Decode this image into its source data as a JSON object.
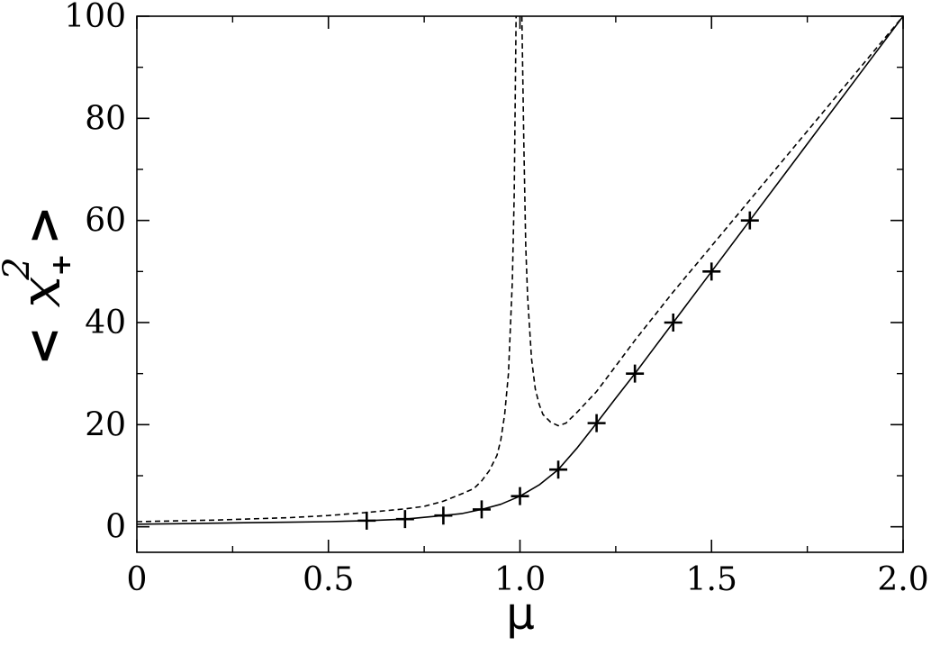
{
  "chart_data": {
    "type": "line",
    "title": "",
    "xlabel": "μ",
    "ylabel": "< x₊² >",
    "ylabel_parts": {
      "open": "<",
      "var": "x",
      "sub": "+",
      "sup": "2",
      "close": ">"
    },
    "xlim": [
      0,
      2.0
    ],
    "ylim": [
      -5,
      100
    ],
    "x_ticks": [
      0,
      0.5,
      1.0,
      1.5,
      2.0
    ],
    "x_tick_labels": [
      "0",
      "0.5",
      "1.0",
      "1.5",
      "2.0"
    ],
    "x_minor_ticks": [
      0.25,
      0.75,
      1.25,
      1.75
    ],
    "y_ticks": [
      0,
      20,
      40,
      60,
      80,
      100
    ],
    "y_tick_labels": [
      "0",
      "20",
      "40",
      "60",
      "80",
      "100"
    ],
    "y_minor_ticks": [
      10,
      30,
      50,
      70,
      90
    ],
    "grid": false,
    "legend": "none",
    "series": [
      {
        "style": "solid",
        "color": "#000000",
        "x": [
          0,
          0.1,
          0.2,
          0.3,
          0.4,
          0.5,
          0.6,
          0.7,
          0.8,
          0.85,
          0.9,
          0.95,
          1.0,
          1.05,
          1.1,
          1.15,
          1.2,
          1.25,
          1.3,
          1.35,
          1.4,
          1.5,
          1.6,
          1.7,
          1.8,
          1.9,
          2.0
        ],
        "y": [
          0.5,
          0.6,
          0.7,
          0.8,
          0.9,
          1.0,
          1.2,
          1.5,
          2.2,
          2.6,
          3.4,
          4.4,
          6.0,
          8.2,
          11.2,
          15.5,
          20.3,
          25.2,
          30.0,
          35.0,
          40.0,
          50.0,
          60.0,
          70.0,
          80.0,
          90.0,
          100.0
        ]
      },
      {
        "style": "dashed",
        "color": "#000000",
        "x": [
          0,
          0.2,
          0.4,
          0.5,
          0.6,
          0.7,
          0.75,
          0.8,
          0.85,
          0.88,
          0.9,
          0.92,
          0.94,
          0.95,
          0.96,
          0.97,
          0.98,
          0.985,
          0.99
        ],
        "y": [
          1.0,
          1.3,
          1.8,
          2.2,
          2.8,
          3.5,
          4.0,
          5.0,
          6.5,
          7.5,
          9.0,
          11.0,
          14.0,
          17.0,
          22.0,
          30.0,
          48.0,
          65.0,
          100.0
        ]
      },
      {
        "style": "dashed",
        "color": "#000000",
        "x": [
          1.005,
          1.01,
          1.015,
          1.02,
          1.03,
          1.04,
          1.05,
          1.06,
          1.08,
          1.1,
          1.12,
          1.15,
          1.2,
          1.25,
          1.3,
          1.4,
          1.5,
          1.6,
          1.7,
          1.8,
          1.9,
          2.0
        ],
        "y": [
          100.0,
          75.0,
          55.0,
          45.0,
          33.0,
          27.0,
          24.0,
          22.0,
          20.5,
          19.8,
          20.3,
          22.5,
          26.5,
          31.5,
          36.5,
          46.0,
          55.0,
          64.0,
          73.0,
          82.0,
          91.0,
          100.0
        ]
      },
      {
        "style": "markers",
        "marker": "plus",
        "color": "#000000",
        "x": [
          0.6,
          0.7,
          0.8,
          0.9,
          1.0,
          1.1,
          1.2,
          1.3,
          1.4,
          1.5,
          1.6
        ],
        "y": [
          1.2,
          1.5,
          2.2,
          3.4,
          6.0,
          11.2,
          20.3,
          30.0,
          40.0,
          50.0,
          60.0
        ]
      }
    ]
  }
}
